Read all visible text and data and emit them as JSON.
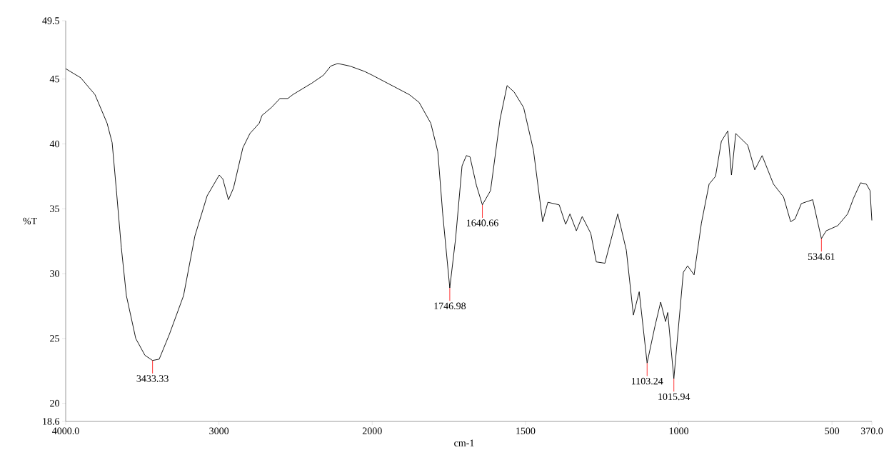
{
  "chart_data": [
    {
      "type": "line",
      "ylabel": "%T",
      "xlim": [
        4000,
        2000
      ],
      "ylim": [
        18.6,
        49.5
      ],
      "xticks": [
        {
          "value": 4000,
          "label": "4000.0"
        },
        3000,
        2000
      ],
      "yticks": [
        18.6,
        20,
        25,
        30,
        35,
        40,
        45,
        49.5
      ],
      "x": [
        4000,
        3902,
        3809,
        3730,
        3697,
        3669,
        3637,
        3604,
        3543,
        3483,
        3433.33,
        3390,
        3324,
        3231,
        3157,
        3077,
        2998,
        2975,
        2938,
        2905,
        2844,
        2798,
        2737,
        2719,
        2658,
        2602,
        2551,
        2518,
        2392,
        2318,
        2271,
        2225,
        2145,
        2052,
        2000
      ],
      "series": [
        {
          "color": "#000000",
          "values": [
            45.8,
            45.1,
            43.8,
            41.6,
            40.1,
            36.4,
            32.0,
            28.3,
            25.0,
            23.7,
            23.3,
            23.4,
            25.3,
            28.3,
            32.9,
            36.0,
            37.6,
            37.3,
            35.7,
            36.6,
            39.7,
            40.8,
            41.6,
            42.2,
            42.8,
            43.5,
            43.5,
            43.8,
            44.7,
            45.3,
            46.0,
            46.2,
            46.0,
            45.6,
            45.3
          ]
        }
      ],
      "annotations": [
        {
          "text": "3433.33",
          "x": 3433.33,
          "y": 23.3
        }
      ]
    },
    {
      "type": "line",
      "xlabel": "cm-1",
      "tick_labels": "x",
      "xlim": [
        2000,
        370
      ],
      "ylim": [
        18.6,
        49.5
      ],
      "xticks": [
        1500,
        1000,
        500,
        {
          "value": 370,
          "label": "370.0"
        }
      ],
      "x": [
        2000,
        1879,
        1847,
        1809,
        1786,
        1770,
        1746.98,
        1728,
        1707,
        1693,
        1681,
        1660,
        1640.66,
        1614,
        1583,
        1560,
        1537,
        1506,
        1474,
        1444,
        1427,
        1390,
        1369,
        1355,
        1334,
        1315,
        1287,
        1269,
        1241,
        1199,
        1171,
        1148,
        1129,
        1103.24,
        1078,
        1059,
        1043,
        1036,
        1015.94,
        985,
        971,
        950,
        926,
        901,
        880,
        861,
        840,
        828,
        814,
        775,
        752,
        728,
        691,
        658,
        635,
        621,
        600,
        563,
        534.61,
        519,
        481,
        449,
        430,
        407,
        388,
        376,
        370
      ],
      "series": [
        {
          "color": "#000000",
          "values": [
            45.3,
            43.8,
            43.2,
            41.6,
            39.4,
            34.6,
            28.9,
            32.7,
            38.3,
            39.1,
            39.0,
            36.8,
            35.3,
            36.4,
            41.9,
            44.5,
            44.0,
            42.8,
            39.5,
            34.0,
            35.5,
            35.3,
            33.8,
            34.6,
            33.3,
            34.4,
            33.1,
            30.9,
            30.8,
            34.6,
            31.8,
            26.8,
            28.6,
            23.1,
            25.9,
            27.8,
            26.3,
            27.0,
            21.9,
            30.1,
            30.6,
            29.9,
            33.9,
            36.9,
            37.5,
            40.2,
            41.0,
            37.6,
            40.8,
            39.9,
            38.0,
            39.1,
            36.9,
            35.9,
            34.0,
            34.2,
            35.4,
            35.7,
            32.7,
            33.3,
            33.7,
            34.6,
            35.8,
            37.0,
            36.9,
            36.4,
            34.1
          ]
        }
      ],
      "annotations": [
        {
          "text": "1746.98",
          "x": 1746.98,
          "y": 28.9
        },
        {
          "text": "1640.66",
          "x": 1640.66,
          "y": 35.3
        },
        {
          "text": "1103.24",
          "x": 1103.24,
          "y": 23.1
        },
        {
          "text": "1015.94",
          "x": 1015.94,
          "y": 21.9
        },
        {
          "text": "534.61",
          "x": 534.61,
          "y": 32.7
        }
      ]
    }
  ]
}
